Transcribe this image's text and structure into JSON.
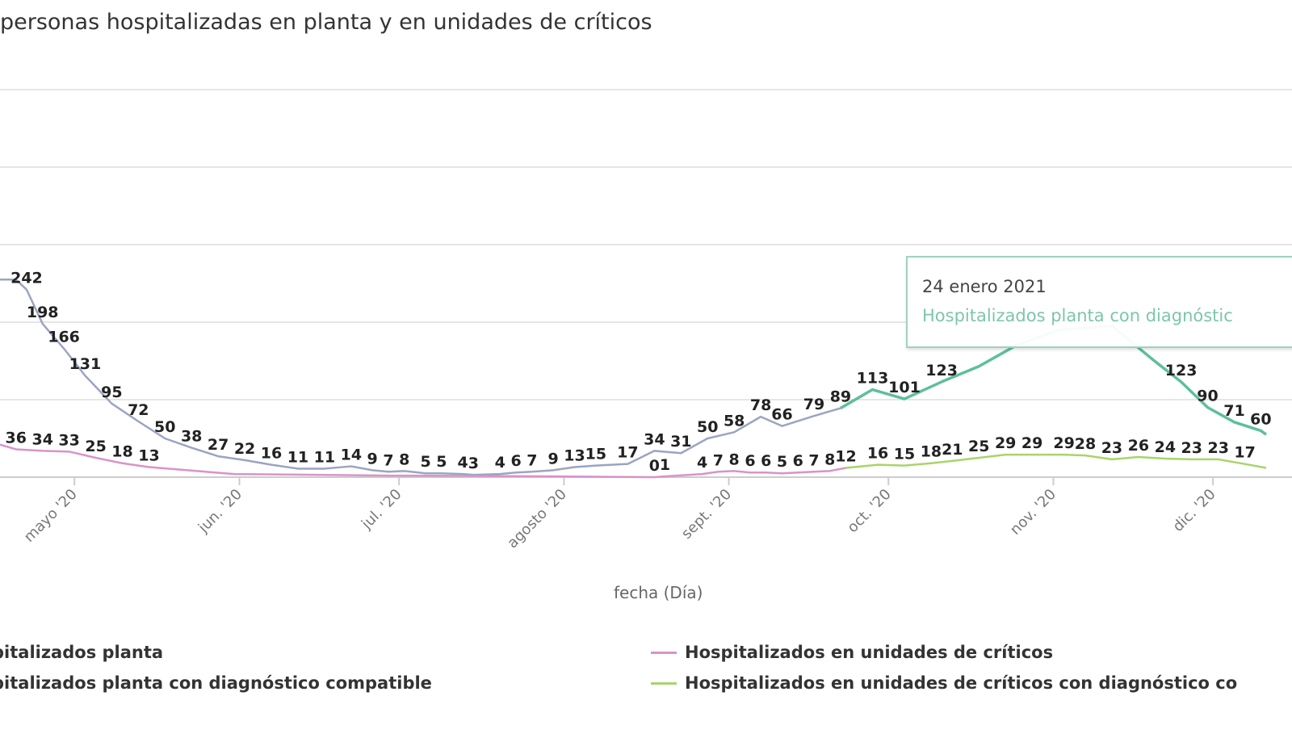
{
  "chart_data": {
    "type": "line",
    "title": "personas hospitalizadas en planta y en unidades de críticos",
    "xlabel": "fecha (Día)",
    "ylabel": "",
    "x_unit": "days since 1 May 2020",
    "xlim": [
      -14,
      224
    ],
    "ylim": [
      0,
      500
    ],
    "y_gridlines": [
      0,
      100,
      200,
      300,
      400,
      500
    ],
    "x_ticks": [
      {
        "x": 0,
        "label": "mayo '20"
      },
      {
        "x": 31,
        "label": "jun. '20"
      },
      {
        "x": 61,
        "label": "jul. '20"
      },
      {
        "x": 92,
        "label": "agosto '20"
      },
      {
        "x": 123,
        "label": "sept. '20"
      },
      {
        "x": 153,
        "label": "oct. '20"
      },
      {
        "x": 184,
        "label": "nov. '20"
      },
      {
        "x": 214,
        "label": "dic. '20"
      }
    ],
    "series": [
      {
        "name": "pitalizados planta",
        "color": "#9ba4c2",
        "points": [
          [
            -14,
            255,
            0
          ],
          [
            -11,
            255,
            0
          ],
          [
            -9,
            242,
            1
          ],
          [
            -6,
            198,
            1
          ],
          [
            -2,
            166,
            1
          ],
          [
            2,
            131,
            1
          ],
          [
            7,
            95,
            1
          ],
          [
            12,
            72,
            1
          ],
          [
            17,
            50,
            1
          ],
          [
            22,
            38,
            1
          ],
          [
            27,
            27,
            1
          ],
          [
            32,
            22,
            1
          ],
          [
            37,
            16,
            1
          ],
          [
            42,
            11,
            1
          ],
          [
            47,
            11,
            1
          ],
          [
            52,
            14,
            1
          ],
          [
            56,
            9,
            1
          ],
          [
            59,
            7,
            1
          ],
          [
            62,
            8,
            1
          ],
          [
            66,
            5,
            1
          ],
          [
            69,
            5,
            1
          ],
          [
            73,
            4,
            1
          ],
          [
            75,
            3,
            1
          ],
          [
            80,
            4,
            1
          ],
          [
            83,
            6,
            1
          ],
          [
            86,
            7,
            1
          ],
          [
            90,
            9,
            1
          ],
          [
            94,
            13,
            1
          ],
          [
            98,
            15,
            1
          ],
          [
            104,
            17,
            1
          ],
          [
            109,
            34,
            1
          ],
          [
            114,
            31,
            1
          ],
          [
            119,
            50,
            1
          ],
          [
            124,
            58,
            1
          ],
          [
            129,
            78,
            1
          ],
          [
            133,
            66,
            1
          ],
          [
            139,
            79,
            1
          ],
          [
            144,
            89,
            1
          ]
        ]
      },
      {
        "name": "pitalizados planta con diagnóstico compatible",
        "color": "#5dbf9f",
        "points": [
          [
            144,
            89,
            0
          ],
          [
            150,
            113,
            1
          ],
          [
            156,
            101,
            1
          ],
          [
            163,
            123,
            1
          ],
          [
            170,
            143,
            0
          ],
          [
            177,
            170,
            0
          ],
          [
            185,
            190,
            0
          ],
          [
            195,
            195,
            0
          ],
          [
            203,
            150,
            0
          ],
          [
            208,
            123,
            1
          ],
          [
            213,
            90,
            1
          ],
          [
            218,
            71,
            1
          ],
          [
            223,
            60,
            1
          ],
          [
            224,
            55,
            0
          ]
        ]
      },
      {
        "name": "Hospitalizados en unidades de críticos",
        "color": "#d993c9",
        "points": [
          [
            -14,
            42,
            0
          ],
          [
            -11,
            36,
            1
          ],
          [
            -6,
            34,
            1
          ],
          [
            -1,
            33,
            1
          ],
          [
            4,
            25,
            1
          ],
          [
            9,
            18,
            1
          ],
          [
            14,
            13,
            1
          ],
          [
            30,
            4,
            0
          ],
          [
            60,
            2,
            0
          ],
          [
            90,
            1,
            0
          ],
          [
            109,
            0,
            1
          ],
          [
            111,
            1,
            1
          ],
          [
            118,
            4,
            1
          ],
          [
            121,
            7,
            1
          ],
          [
            124,
            8,
            1
          ],
          [
            127,
            6,
            1
          ],
          [
            130,
            6,
            1
          ],
          [
            133,
            5,
            1
          ],
          [
            136,
            6,
            1
          ],
          [
            139,
            7,
            1
          ],
          [
            142,
            8,
            1
          ],
          [
            145,
            12,
            1
          ]
        ]
      },
      {
        "name": "Hospitalizados en unidades de críticos con diagnóstico co",
        "color": "#a9d46b",
        "points": [
          [
            145,
            12,
            0
          ],
          [
            151,
            16,
            1
          ],
          [
            156,
            15,
            1
          ],
          [
            161,
            18,
            1
          ],
          [
            165,
            21,
            1
          ],
          [
            170,
            25,
            1
          ],
          [
            175,
            29,
            1
          ],
          [
            180,
            29,
            1
          ],
          [
            186,
            29,
            1
          ],
          [
            190,
            28,
            1
          ],
          [
            195,
            23,
            1
          ],
          [
            200,
            26,
            1
          ],
          [
            205,
            24,
            1
          ],
          [
            210,
            23,
            1
          ],
          [
            215,
            23,
            1
          ],
          [
            220,
            17,
            1
          ],
          [
            224,
            12,
            0
          ]
        ]
      }
    ],
    "tooltip": {
      "date": "24 enero 2021",
      "series": "Hospitalizados planta con diagnóstic"
    },
    "legend_position": "bottom"
  }
}
